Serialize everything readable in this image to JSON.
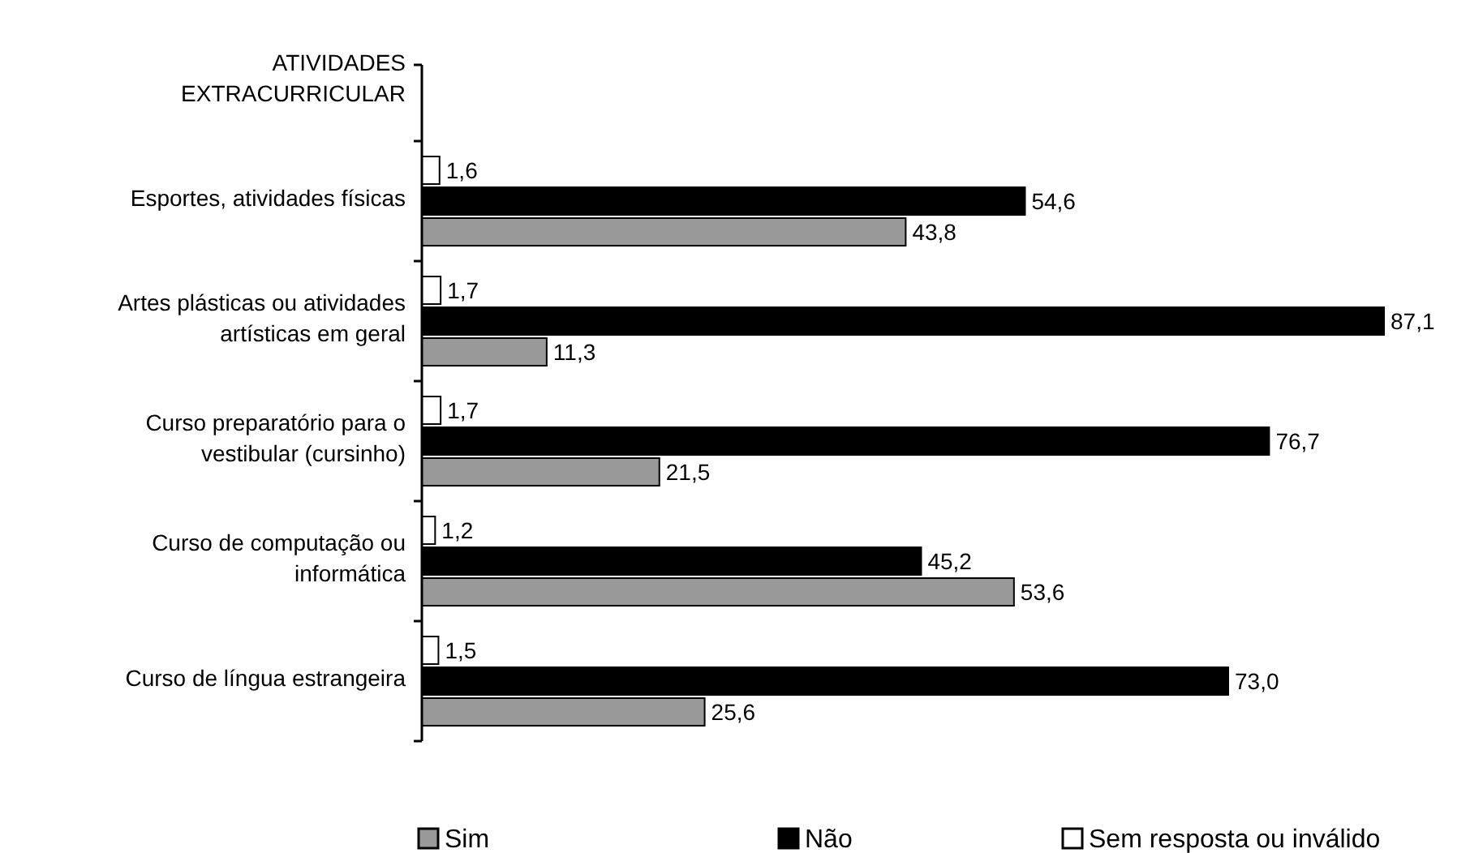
{
  "chart_data": {
    "type": "bar",
    "orientation": "horizontal",
    "categories": [
      "ATIVIDADES EXTRACURRICULAR",
      "Esportes, atividades físicas",
      "Artes plásticas ou atividades artísticas em geral",
      "Curso preparatório para o vestibular (cursinho)",
      "Curso de computação ou informática",
      "Curso de língua estrangeira"
    ],
    "series": [
      {
        "name": "Sim",
        "color": "#999999",
        "values": [
          null,
          43.8,
          11.3,
          21.5,
          53.6,
          25.6
        ],
        "value_labels": [
          null,
          "43,8",
          "11,3",
          "21,5",
          "53,6",
          "25,6"
        ]
      },
      {
        "name": "Não",
        "color": "#000000",
        "values": [
          null,
          54.6,
          87.1,
          76.7,
          45.2,
          73.0
        ],
        "value_labels": [
          null,
          "54,6",
          "87,1",
          "76,7",
          "45,2",
          "73,0"
        ]
      },
      {
        "name": "Sem resposta ou inválido",
        "color": "#ffffff",
        "values": [
          null,
          1.6,
          1.7,
          1.7,
          1.2,
          1.5
        ],
        "value_labels": [
          null,
          "1,6",
          "1,7",
          "1,7",
          "1,2",
          "1,5"
        ]
      }
    ],
    "legend": "bottom"
  }
}
